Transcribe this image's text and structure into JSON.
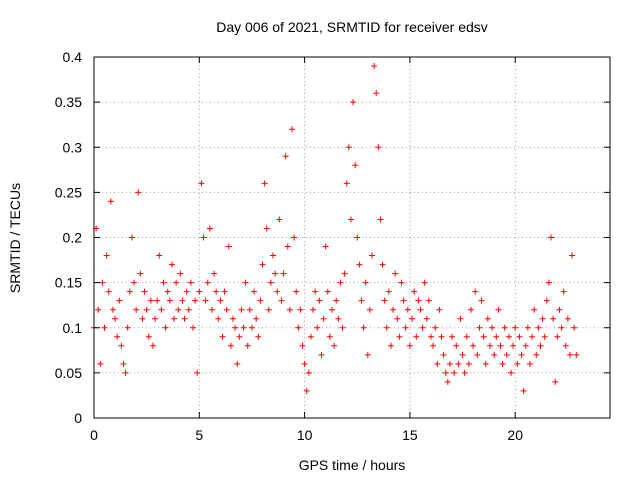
{
  "chart_data": {
    "type": "scatter",
    "title": "Day 006 of 2021, SRMTID for receiver edsv",
    "xlabel": "GPS time / hours",
    "ylabel": "SRMTID / TECUs",
    "xlim": [
      0,
      24.5
    ],
    "ylim": [
      0,
      0.4
    ],
    "x_ticks": [
      0,
      5,
      10,
      15,
      20
    ],
    "x_tick_labels": [
      "0",
      "5",
      "10",
      "15",
      "20"
    ],
    "y_ticks": [
      0,
      0.05,
      0.1,
      0.15,
      0.2,
      0.25,
      0.3,
      0.35,
      0.4
    ],
    "y_tick_labels": [
      "0",
      "0.05",
      "0.1",
      "0.15",
      "0.2",
      "0.25",
      "0.3",
      "0.35",
      "0.4"
    ],
    "grid": true,
    "marker": "+",
    "color": "#ff0000",
    "series": [
      {
        "name": "SRMTID",
        "x": [
          0.0,
          0.1,
          0.2,
          0.3,
          0.4,
          0.5,
          0.6,
          0.7,
          0.8,
          0.9,
          1.0,
          1.1,
          1.2,
          1.3,
          1.4,
          1.5,
          1.6,
          1.7,
          1.8,
          1.9,
          2.0,
          2.1,
          2.2,
          2.3,
          2.4,
          2.5,
          2.6,
          2.7,
          2.8,
          2.9,
          3.0,
          3.1,
          3.2,
          3.3,
          3.4,
          3.5,
          3.6,
          3.7,
          3.8,
          3.9,
          4.0,
          4.1,
          4.2,
          4.3,
          4.4,
          4.5,
          4.6,
          4.7,
          4.8,
          4.9,
          5.0,
          5.1,
          5.2,
          5.3,
          5.4,
          5.5,
          5.6,
          5.7,
          5.8,
          5.9,
          6.0,
          6.1,
          6.2,
          6.3,
          6.4,
          6.5,
          6.6,
          6.7,
          6.8,
          6.9,
          7.0,
          7.1,
          7.2,
          7.3,
          7.4,
          7.5,
          7.6,
          7.7,
          7.8,
          7.9,
          8.0,
          8.1,
          8.2,
          8.3,
          8.4,
          8.5,
          8.6,
          8.7,
          8.8,
          8.9,
          9.0,
          9.1,
          9.2,
          9.3,
          9.4,
          9.5,
          9.6,
          9.7,
          9.8,
          9.9,
          10.0,
          10.1,
          10.2,
          10.3,
          10.4,
          10.5,
          10.6,
          10.7,
          10.8,
          10.9,
          11.0,
          11.1,
          11.2,
          11.3,
          11.4,
          11.5,
          11.6,
          11.7,
          11.8,
          11.9,
          12.0,
          12.1,
          12.2,
          12.3,
          12.4,
          12.5,
          12.6,
          12.7,
          12.8,
          12.9,
          13.0,
          13.1,
          13.2,
          13.3,
          13.4,
          13.5,
          13.6,
          13.7,
          13.8,
          13.9,
          14.0,
          14.1,
          14.2,
          14.3,
          14.4,
          14.5,
          14.6,
          14.7,
          14.8,
          14.9,
          15.0,
          15.1,
          15.2,
          15.3,
          15.4,
          15.5,
          15.6,
          15.7,
          15.8,
          15.9,
          16.0,
          16.1,
          16.2,
          16.3,
          16.4,
          16.5,
          16.6,
          16.7,
          16.8,
          16.9,
          17.0,
          17.1,
          17.2,
          17.3,
          17.4,
          17.5,
          17.6,
          17.7,
          17.8,
          17.9,
          18.0,
          18.1,
          18.2,
          18.3,
          18.4,
          18.5,
          18.6,
          18.7,
          18.8,
          18.9,
          19.0,
          19.1,
          19.2,
          19.3,
          19.4,
          19.5,
          19.6,
          19.7,
          19.8,
          19.9,
          20.0,
          20.1,
          20.2,
          20.3,
          20.4,
          20.5,
          20.6,
          20.7,
          20.8,
          20.9,
          21.0,
          21.1,
          21.2,
          21.3,
          21.4,
          21.5,
          21.6,
          21.7,
          21.8,
          21.9,
          22.0,
          22.1,
          22.2,
          22.3,
          22.4,
          22.5,
          22.6,
          22.7,
          22.8,
          22.9
        ],
        "y": [
          0.1,
          0.21,
          0.12,
          0.06,
          0.15,
          0.1,
          0.18,
          0.14,
          0.24,
          0.12,
          0.11,
          0.09,
          0.13,
          0.08,
          0.06,
          0.05,
          0.1,
          0.14,
          0.2,
          0.15,
          0.12,
          0.25,
          0.16,
          0.11,
          0.14,
          0.12,
          0.09,
          0.13,
          0.08,
          0.11,
          0.13,
          0.18,
          0.12,
          0.15,
          0.1,
          0.14,
          0.13,
          0.17,
          0.11,
          0.15,
          0.12,
          0.16,
          0.13,
          0.11,
          0.14,
          0.12,
          0.15,
          0.1,
          0.13,
          0.05,
          0.14,
          0.26,
          0.2,
          0.13,
          0.15,
          0.21,
          0.12,
          0.16,
          0.14,
          0.11,
          0.13,
          0.09,
          0.14,
          0.12,
          0.19,
          0.08,
          0.11,
          0.1,
          0.06,
          0.09,
          0.12,
          0.1,
          0.15,
          0.08,
          0.12,
          0.1,
          0.14,
          0.11,
          0.09,
          0.13,
          0.17,
          0.26,
          0.21,
          0.12,
          0.15,
          0.18,
          0.16,
          0.14,
          0.22,
          0.13,
          0.16,
          0.29,
          0.19,
          0.12,
          0.32,
          0.2,
          0.14,
          0.1,
          0.12,
          0.08,
          0.06,
          0.03,
          0.05,
          0.09,
          0.12,
          0.14,
          0.1,
          0.13,
          0.07,
          0.11,
          0.19,
          0.14,
          0.09,
          0.12,
          0.08,
          0.13,
          0.11,
          0.15,
          0.1,
          0.16,
          0.26,
          0.3,
          0.22,
          0.35,
          0.28,
          0.2,
          0.17,
          0.13,
          0.1,
          0.15,
          0.07,
          0.12,
          0.18,
          0.39,
          0.36,
          0.3,
          0.22,
          0.17,
          0.13,
          0.1,
          0.14,
          0.08,
          0.12,
          0.16,
          0.11,
          0.09,
          0.15,
          0.13,
          0.1,
          0.12,
          0.08,
          0.11,
          0.14,
          0.09,
          0.13,
          0.12,
          0.1,
          0.15,
          0.11,
          0.13,
          0.09,
          0.08,
          0.1,
          0.06,
          0.12,
          0.09,
          0.07,
          0.05,
          0.04,
          0.06,
          0.09,
          0.05,
          0.08,
          0.06,
          0.11,
          0.07,
          0.05,
          0.09,
          0.06,
          0.12,
          0.08,
          0.14,
          0.07,
          0.1,
          0.13,
          0.09,
          0.06,
          0.11,
          0.08,
          0.1,
          0.07,
          0.09,
          0.12,
          0.08,
          0.06,
          0.1,
          0.07,
          0.09,
          0.05,
          0.08,
          0.1,
          0.06,
          0.09,
          0.07,
          0.03,
          0.08,
          0.1,
          0.06,
          0.09,
          0.12,
          0.07,
          0.1,
          0.08,
          0.11,
          0.09,
          0.13,
          0.15,
          0.2,
          0.11,
          0.04,
          0.09,
          0.12,
          0.1,
          0.14,
          0.08,
          0.11,
          0.07,
          0.18,
          0.1,
          0.07
        ]
      }
    ]
  }
}
